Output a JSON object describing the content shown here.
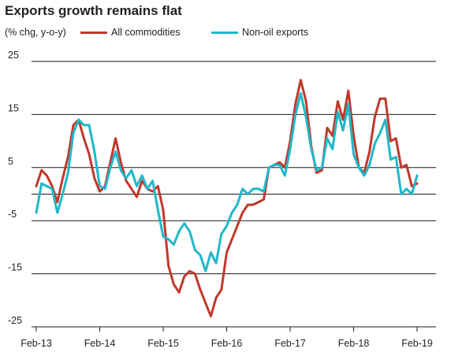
{
  "colors": {
    "all": "#c0392b",
    "nonoil": "#1fb8c9",
    "grid": "#1a1a1a",
    "text": "#231f20"
  },
  "chart_data": {
    "type": "line",
    "title": "Exports growth remains flat",
    "ylabel": "(% chg, y-o-y)",
    "ylim": [
      -25,
      25
    ],
    "yticks": [
      25,
      15,
      5,
      -5,
      -15,
      -25
    ],
    "xlim": [
      0,
      72
    ],
    "xticks": [
      {
        "label": "Feb-13",
        "x": 0
      },
      {
        "label": "Feb-14",
        "x": 12
      },
      {
        "label": "Feb-15",
        "x": 24
      },
      {
        "label": "Feb-16",
        "x": 36
      },
      {
        "label": "Feb-17",
        "x": 48
      },
      {
        "label": "Feb-18",
        "x": 60
      },
      {
        "label": "Feb-19",
        "x": 72
      }
    ],
    "grid": true,
    "legend_position": "top",
    "series": [
      {
        "name": "All commodities",
        "values": [
          1.5,
          4.5,
          3.5,
          1.5,
          -1.5,
          3,
          7,
          13,
          14,
          10.5,
          7.5,
          3,
          0.5,
          1.5,
          6,
          10.5,
          6,
          2.5,
          1,
          -0.5,
          2.5,
          1,
          0.5,
          1.5,
          -3,
          -13.5,
          -17,
          -18.5,
          -15.5,
          -14.5,
          -15,
          -18,
          -20.5,
          -23,
          -19.5,
          -18,
          -11,
          -8.5,
          -6,
          -3.5,
          -2,
          -2,
          -1.5,
          -1,
          5,
          5.5,
          6,
          5,
          10,
          17,
          21.5,
          17.5,
          9,
          4,
          4.5,
          12.5,
          11,
          17.5,
          14,
          19.5,
          11,
          5,
          4,
          8,
          14.5,
          18,
          18,
          10,
          10.5,
          5,
          5.5,
          1.5,
          2
        ]
      },
      {
        "name": "Non-oil exports",
        "values": [
          -3.5,
          2,
          1.5,
          1,
          -3.5,
          0,
          4,
          11.5,
          14,
          13,
          13,
          8,
          1.5,
          1,
          5,
          8,
          4.5,
          3,
          4.5,
          1.5,
          3.5,
          1,
          2.5,
          -3,
          -8,
          -8.5,
          -9.5,
          -7,
          -5.5,
          -7,
          -10.5,
          -11.5,
          -14.5,
          -11,
          -13,
          -7.5,
          -6,
          -3.5,
          -2,
          1,
          0,
          1,
          1,
          0.5,
          5,
          5.5,
          5.5,
          3.5,
          8.5,
          15,
          19,
          14.5,
          8.5,
          4.5,
          5,
          10.5,
          8.5,
          15.5,
          12,
          17,
          7.5,
          5,
          3.5,
          5.5,
          9.5,
          11.5,
          14,
          6.5,
          7,
          0,
          1,
          0,
          3.5
        ]
      }
    ]
  }
}
